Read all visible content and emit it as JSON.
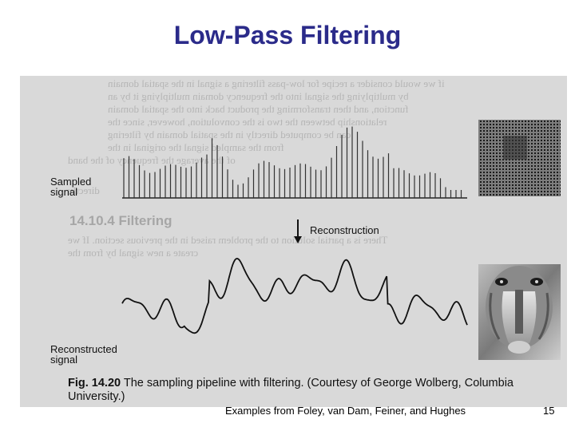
{
  "slide": {
    "title": "Low-Pass Filtering",
    "footer_credit": "Examples from Foley, van Dam, Feiner, and Hughes",
    "page_number": "15"
  },
  "figure": {
    "sampled_label": "Sampled\nsignal",
    "reconstruction_label": "Reconstruction",
    "reconstructed_label": "Reconstructed\nsignal",
    "caption_fig_number": "Fig. 14.20",
    "caption_text": " The sampling pipeline with filtering. (Courtesy of George Wolberg, Columbia University.)",
    "background_heading": "14.10.4  Filtering",
    "colors": {
      "title": "#2b2b8a",
      "scan_background": "#d9d9d9",
      "ink": "#111111"
    }
  }
}
